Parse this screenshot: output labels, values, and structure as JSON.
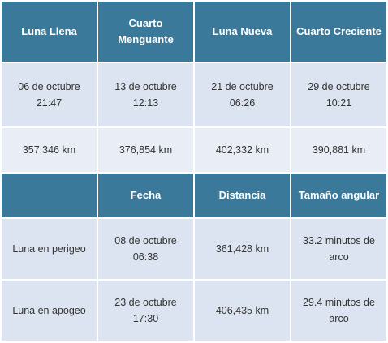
{
  "phases": {
    "headers": [
      "Luna Llena",
      "Cuarto Menguante",
      "Luna Nueva",
      "Cuarto Creciente"
    ],
    "dates": [
      {
        "date": "06 de octubre",
        "time": "21:47"
      },
      {
        "date": "13 de octubre",
        "time": "12:13"
      },
      {
        "date": "21 de octubre",
        "time": "06:26"
      },
      {
        "date": "29 de octubre",
        "time": "10:21"
      }
    ],
    "distances": [
      "357,346 km",
      "376,854 km",
      "402,332 km",
      "390,881 km"
    ]
  },
  "apsides": {
    "headers": [
      "Fecha",
      "Distancia",
      "Tamaño angular"
    ],
    "rows": [
      {
        "label": "Luna en perigeo",
        "date": "08 de octubre",
        "time": "06:38",
        "distance": "361,428 km",
        "size_line1": "33.2 minutos de",
        "size_line2": "arco"
      },
      {
        "label": "Luna en apogeo",
        "date": "23 de octubre",
        "time": "17:30",
        "distance": "406,435 km",
        "size_line1": "29.4 minutos de",
        "size_line2": "arco"
      }
    ]
  },
  "colors": {
    "header_bg": "#3a799a",
    "row_bg": "#dbe4f0",
    "row_alt_bg": "#e9eef6"
  }
}
